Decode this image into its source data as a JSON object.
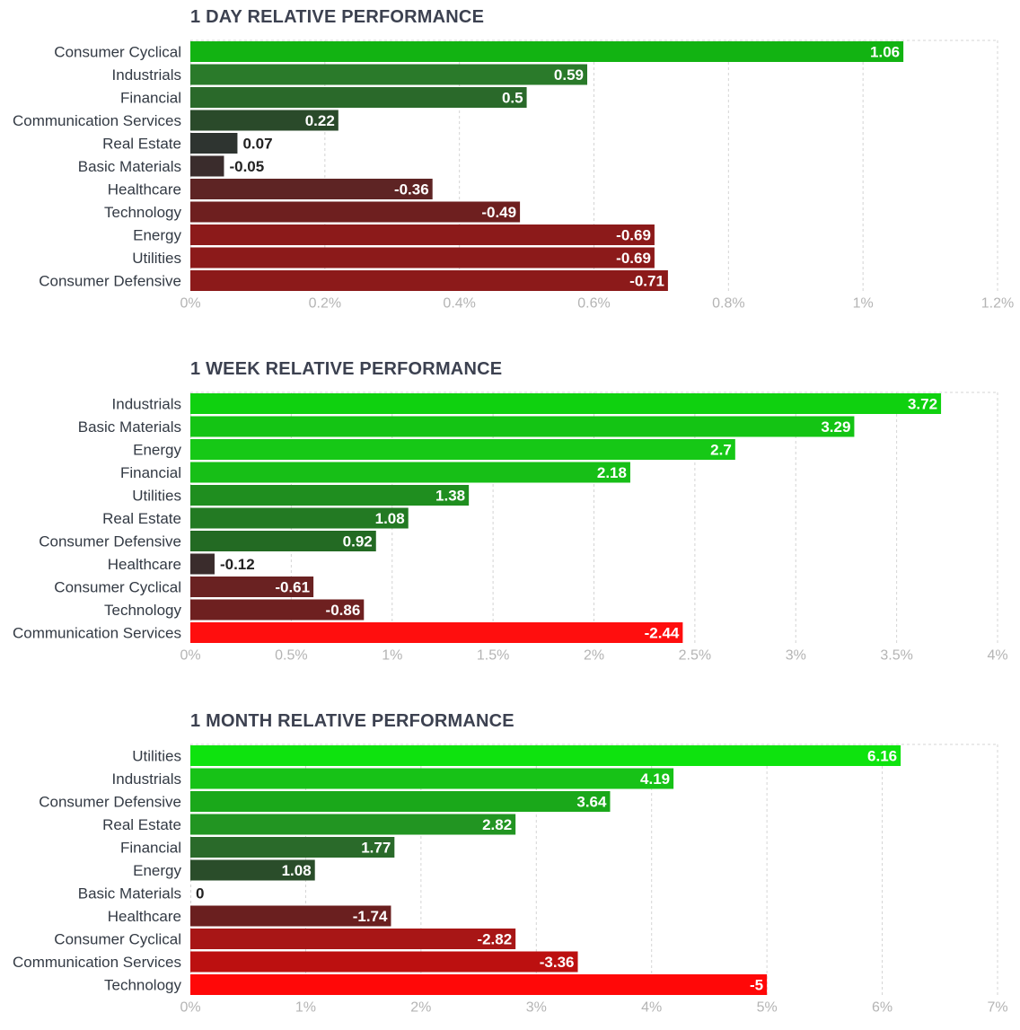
{
  "chart_data": [
    {
      "type": "bar",
      "orientation": "horizontal",
      "title": "1 DAY RELATIVE PERFORMANCE",
      "categories": [
        "Consumer Cyclical",
        "Industrials",
        "Financial",
        "Communication Services",
        "Real Estate",
        "Basic Materials",
        "Healthcare",
        "Technology",
        "Energy",
        "Utilities",
        "Consumer Defensive"
      ],
      "values": [
        1.06,
        0.59,
        0.5,
        0.22,
        0.07,
        -0.05,
        -0.36,
        -0.49,
        -0.69,
        -0.69,
        -0.71
      ],
      "value_labels": [
        "1.06",
        "0.59",
        "0.5",
        "0.22",
        "0.07",
        "-0.05",
        "-0.36",
        "-0.49",
        "-0.69",
        "-0.69",
        "-0.71"
      ],
      "colors": [
        "#12b312",
        "#2a7a2a",
        "#2a692a",
        "#2a4a2a",
        "#2e3430",
        "#3a2c2c",
        "#5e2424",
        "#6e1f1f",
        "#8c1a1a",
        "#8c1a1a",
        "#8c1a1a"
      ],
      "xlim": [
        0,
        1.2
      ],
      "ticks": [
        0,
        0.2,
        0.4,
        0.6,
        0.8,
        1.0,
        1.2
      ],
      "tick_labels": [
        "0%",
        "0.2%",
        "0.4%",
        "0.6%",
        "0.8%",
        "1%",
        "1.2%"
      ],
      "value_scale": "absolute",
      "grid": true
    },
    {
      "type": "bar",
      "orientation": "horizontal",
      "title": "1 WEEK RELATIVE PERFORMANCE",
      "categories": [
        "Industrials",
        "Basic Materials",
        "Energy",
        "Financial",
        "Utilities",
        "Real Estate",
        "Consumer Defensive",
        "Healthcare",
        "Consumer Cyclical",
        "Technology",
        "Communication Services"
      ],
      "values": [
        3.72,
        3.29,
        2.7,
        2.18,
        1.38,
        1.08,
        0.92,
        -0.12,
        -0.61,
        -0.86,
        -2.44
      ],
      "value_labels": [
        "3.72",
        "3.29",
        "2.7",
        "2.18",
        "1.38",
        "1.08",
        "0.92",
        "-0.12",
        "-0.61",
        "-0.86",
        "-2.44"
      ],
      "colors": [
        "#0fd10f",
        "#14c414",
        "#16c816",
        "#17bf17",
        "#1f8e1f",
        "#237a23",
        "#236a23",
        "#3a2c2c",
        "#6a2222",
        "#6e2020",
        "#ff0e0e"
      ],
      "xlim": [
        0,
        4
      ],
      "ticks": [
        0,
        0.5,
        1,
        1.5,
        2,
        2.5,
        3,
        3.5,
        4
      ],
      "tick_labels": [
        "0%",
        "0.5%",
        "1%",
        "1.5%",
        "2%",
        "2.5%",
        "3%",
        "3.5%",
        "4%"
      ],
      "value_scale": "absolute",
      "grid": true
    },
    {
      "type": "bar",
      "orientation": "horizontal",
      "title": "1 MONTH RELATIVE PERFORMANCE",
      "categories": [
        "Utilities",
        "Industrials",
        "Consumer Defensive",
        "Real Estate",
        "Financial",
        "Energy",
        "Basic Materials",
        "Healthcare",
        "Consumer Cyclical",
        "Communication Services",
        "Technology"
      ],
      "values": [
        6.16,
        4.19,
        3.64,
        2.82,
        1.77,
        1.08,
        0,
        -1.74,
        -2.82,
        -3.36,
        -5
      ],
      "value_labels": [
        "6.16",
        "4.19",
        "3.64",
        "2.82",
        "1.77",
        "1.08",
        "0",
        "-1.74",
        "-2.82",
        "-3.36",
        "-5"
      ],
      "colors": [
        "#0ee30e",
        "#17c217",
        "#1aa81a",
        "#229522",
        "#2a6a2a",
        "#2a4d2a",
        "#3a2c2c",
        "#6a1f1f",
        "#a81616",
        "#bc1010",
        "#ff0808"
      ],
      "xlim": [
        0,
        7
      ],
      "ticks": [
        0,
        1,
        2,
        3,
        4,
        5,
        6,
        7
      ],
      "tick_labels": [
        "0%",
        "1%",
        "2%",
        "3%",
        "4%",
        "5%",
        "6%",
        "7%"
      ],
      "value_scale": "absolute",
      "grid": true
    }
  ]
}
